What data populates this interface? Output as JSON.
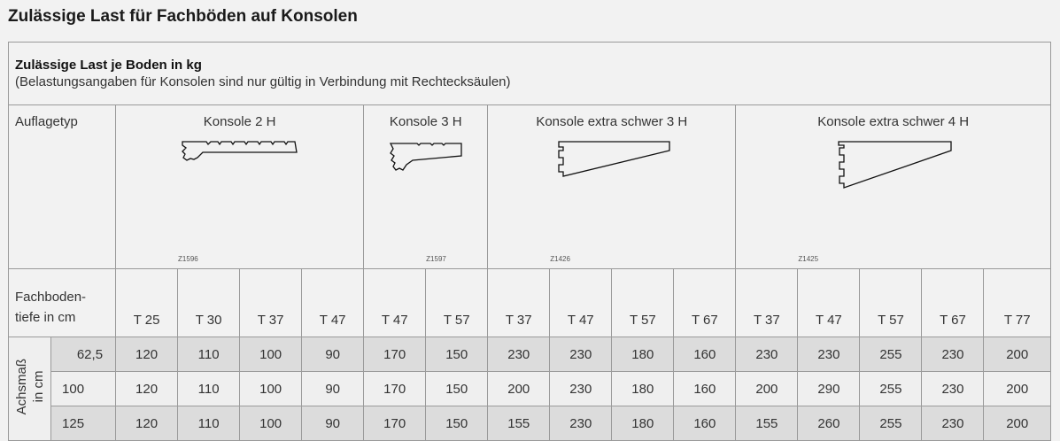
{
  "title": "Zulässige Last für Fachböden auf Konsolen",
  "intro": {
    "heading": "Zulässige Last je Boden in kg",
    "note": "(Belastungsangaben für Konsolen sind nur gültig in Verbindung mit Rechtecksäulen)"
  },
  "type_label": "Auflagetyp",
  "consoles": [
    {
      "name": "Konsole 2 H",
      "code": "Z1596"
    },
    {
      "name": "Konsole 3 H",
      "code": "Z1597"
    },
    {
      "name": "Konsole extra schwer 3 H",
      "code": "Z1426"
    },
    {
      "name": "Konsole extra schwer 4 H",
      "code": "Z1425"
    }
  ],
  "depth_label_1": "Fachboden-",
  "depth_label_2": "tiefe in cm",
  "depths": [
    "T 25",
    "T 30",
    "T 37",
    "T 47",
    "T 47",
    "T 57",
    "T 37",
    "T 47",
    "T 57",
    "T 67",
    "T 37",
    "T 47",
    "T 57",
    "T 67",
    "T 77"
  ],
  "axis_label_1": "Achsmaß",
  "axis_label_2": "in cm",
  "rows": [
    {
      "achsmass": "62,5",
      "values": [
        "120",
        "110",
        "100",
        "90",
        "170",
        "150",
        "230",
        "230",
        "180",
        "160",
        "230",
        "230",
        "255",
        "230",
        "200"
      ]
    },
    {
      "achsmass": "100",
      "values": [
        "120",
        "110",
        "100",
        "90",
        "170",
        "150",
        "200",
        "230",
        "180",
        "160",
        "200",
        "290",
        "255",
        "230",
        "200"
      ]
    },
    {
      "achsmass": "125",
      "values": [
        "120",
        "110",
        "100",
        "90",
        "170",
        "150",
        "155",
        "230",
        "180",
        "160",
        "155",
        "260",
        "255",
        "230",
        "200"
      ]
    }
  ]
}
